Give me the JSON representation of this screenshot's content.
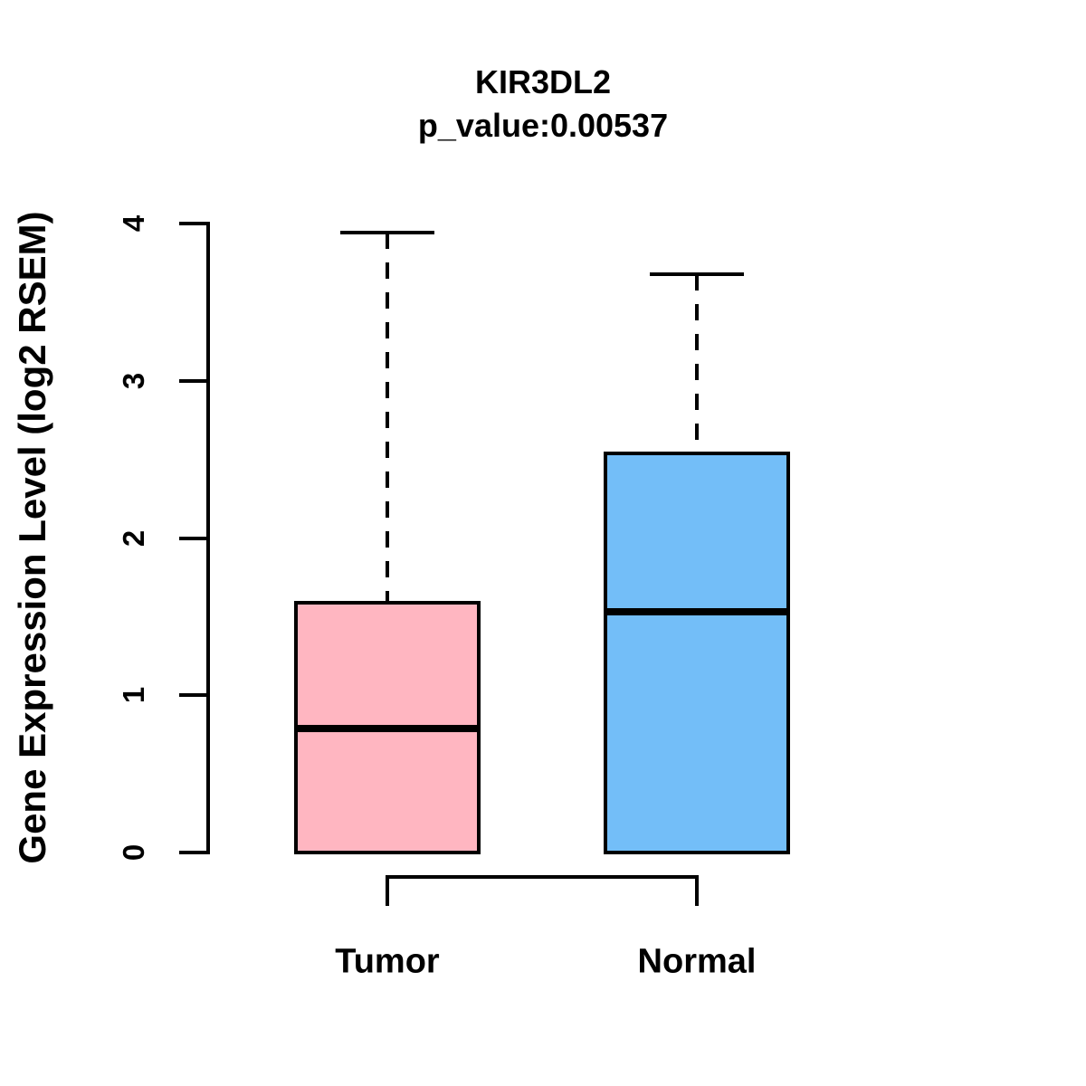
{
  "chart_data": {
    "type": "boxplot",
    "title": "KIR3DL2",
    "subtitle": "p_value:0.00537",
    "gene": "KIR3DL2",
    "p_value": "0.00537",
    "ylabel": "Gene Expression Level (log2 RSEM)",
    "ylim": [
      0,
      4
    ],
    "yticks": [
      0,
      1,
      2,
      3,
      4
    ],
    "categories": [
      "Tumor",
      "Normal"
    ],
    "series": [
      {
        "name": "Tumor",
        "color": "#FFB6C1",
        "min": 0,
        "q1": 0,
        "median": 0.79,
        "q3": 1.59,
        "max": 3.94
      },
      {
        "name": "Normal",
        "color": "#73BEF8",
        "min": 0,
        "q1": 0,
        "median": 1.53,
        "q3": 2.54,
        "max": 3.68
      }
    ],
    "axis_color": "#000000",
    "whisker_style": "dashed",
    "legend": "none",
    "grid": "off"
  }
}
